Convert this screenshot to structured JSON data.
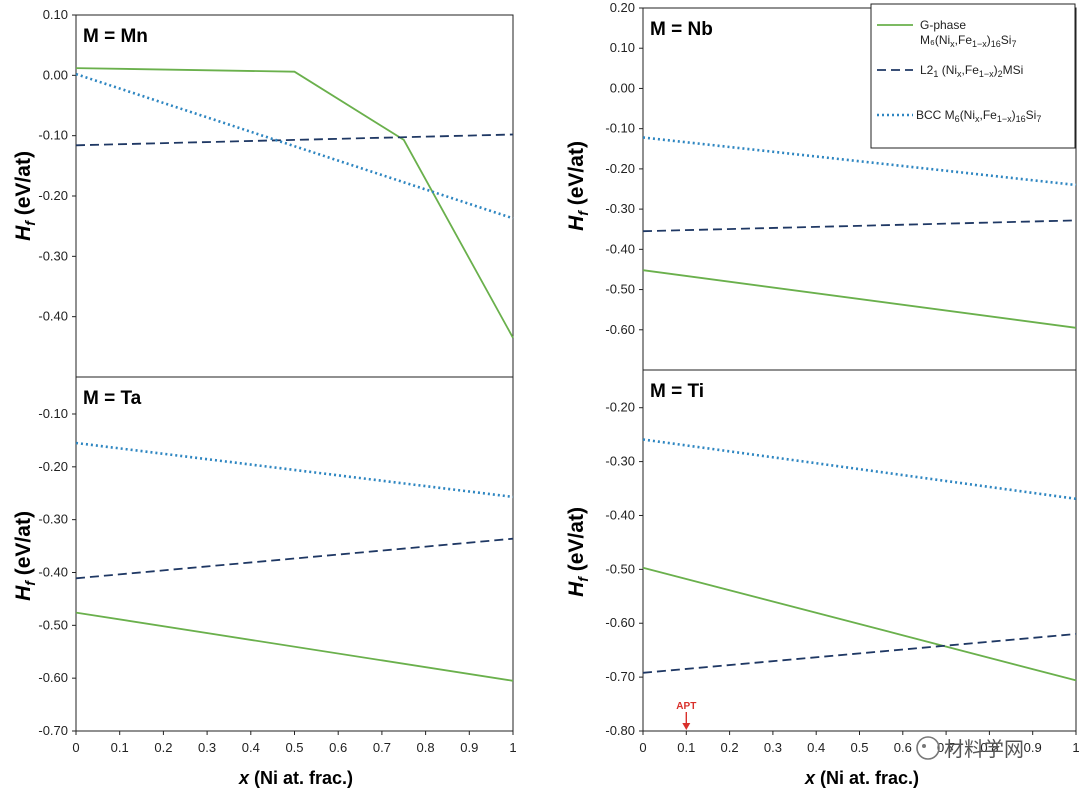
{
  "chart_data": [
    {
      "type": "line",
      "title": "M = Mn",
      "ylabel": "H_f (eV/at)",
      "xlabel": "",
      "ylim": [
        -0.5,
        0.1
      ],
      "yticks": [
        "0.10",
        "0.00",
        "-0.10",
        "-0.20",
        "-0.30",
        "-0.40"
      ],
      "series": [
        {
          "name": "G-phase",
          "style": "solid",
          "color": "#6ab04c",
          "x": [
            0,
            0.5,
            0.75,
            1
          ],
          "y": [
            0.012,
            0.006,
            -0.107,
            -0.435
          ]
        },
        {
          "name": "L21",
          "style": "dashed",
          "color": "#1f3864",
          "x": [
            0,
            1
          ],
          "y": [
            -0.116,
            -0.098
          ]
        },
        {
          "name": "BCC",
          "style": "dotted",
          "color": "#2e86c1",
          "x": [
            0,
            1
          ],
          "y": [
            0.002,
            -0.237
          ]
        }
      ]
    },
    {
      "type": "line",
      "title": "M = Nb",
      "ylabel": "H_f (eV/at)",
      "xlabel": "",
      "ylim": [
        -0.7,
        0.2
      ],
      "yticks": [
        "0.20",
        "0.10",
        "0.00",
        "-0.10",
        "-0.20",
        "-0.30",
        "-0.40",
        "-0.50",
        "-0.60"
      ],
      "series": [
        {
          "name": "G-phase",
          "style": "solid",
          "color": "#6ab04c",
          "x": [
            0,
            1
          ],
          "y": [
            -0.452,
            -0.595
          ]
        },
        {
          "name": "L21",
          "style": "dashed",
          "color": "#1f3864",
          "x": [
            0,
            1
          ],
          "y": [
            -0.355,
            -0.328
          ]
        },
        {
          "name": "BCC",
          "style": "dotted",
          "color": "#2e86c1",
          "x": [
            0,
            1
          ],
          "y": [
            -0.122,
            -0.24
          ]
        }
      ]
    },
    {
      "type": "line",
      "title": "M = Ta",
      "ylabel": "H_f (eV/at)",
      "xlabel": "x (Ni at. frac.)",
      "ylim": [
        -0.7,
        -0.03
      ],
      "xticks": [
        "0",
        "0.1",
        "0.2",
        "0.3",
        "0.4",
        "0.5",
        "0.6",
        "0.7",
        "0.8",
        "0.9",
        "1"
      ],
      "yticks": [
        "-0.10",
        "-0.20",
        "-0.30",
        "-0.40",
        "-0.50",
        "-0.60",
        "-0.70"
      ],
      "series": [
        {
          "name": "G-phase",
          "style": "solid",
          "color": "#6ab04c",
          "x": [
            0,
            1
          ],
          "y": [
            -0.476,
            -0.605
          ]
        },
        {
          "name": "L21",
          "style": "dashed",
          "color": "#1f3864",
          "x": [
            0,
            1
          ],
          "y": [
            -0.411,
            -0.336
          ]
        },
        {
          "name": "BCC",
          "style": "dotted",
          "color": "#2e86c1",
          "x": [
            0,
            1
          ],
          "y": [
            -0.155,
            -0.257
          ]
        }
      ]
    },
    {
      "type": "line",
      "title": "M = Ti",
      "ylabel": "H_f (eV/at)",
      "xlabel": "x (Ni at. frac.)",
      "ylim": [
        -0.8,
        -0.13
      ],
      "xticks": [
        "0",
        "0.1",
        "0.2",
        "0.3",
        "0.4",
        "0.5",
        "0.6",
        "0.7",
        "0.8",
        "0.9",
        "1"
      ],
      "yticks": [
        "-0.20",
        "-0.30",
        "-0.40",
        "-0.50",
        "-0.60",
        "-0.70",
        "-0.80"
      ],
      "annotation": {
        "text": "APT",
        "x": 0.1,
        "color": "#d9302b"
      },
      "series": [
        {
          "name": "G-phase",
          "style": "solid",
          "color": "#6ab04c",
          "x": [
            0,
            1
          ],
          "y": [
            -0.497,
            -0.706
          ]
        },
        {
          "name": "L21",
          "style": "dashed",
          "color": "#1f3864",
          "x": [
            0,
            1
          ],
          "y": [
            -0.692,
            -0.62
          ]
        },
        {
          "name": "BCC",
          "style": "dotted",
          "color": "#2e86c1",
          "x": [
            0,
            1
          ],
          "y": [
            -0.259,
            -0.369
          ]
        }
      ]
    }
  ],
  "legend": {
    "placement": "top-right",
    "entries": [
      {
        "key": "g",
        "line1": "G-phase",
        "line2": "M₆(Ni",
        "sub1": "x",
        "mid": ",Fe",
        "sub2": "1−x",
        "tail": ")",
        "sub3": "16",
        "end": "Si",
        "sub4": "7"
      },
      {
        "key": "l",
        "line1": "L2",
        "sub0": "1",
        "rest": " (Ni",
        "sub1": "x",
        "mid": ",Fe",
        "sub2": "1−x",
        "tail": ")",
        "sub3": "2",
        "end": "MSi"
      },
      {
        "key": "b",
        "line1": "BCC  M",
        "sub0": "6",
        "rest": "(Ni",
        "sub1": "x",
        "mid": ",Fe",
        "sub2": "1−x",
        "tail": ")",
        "sub3": "16",
        "end": "Si",
        "sub4": "7"
      }
    ]
  },
  "watermark": "材料学网"
}
